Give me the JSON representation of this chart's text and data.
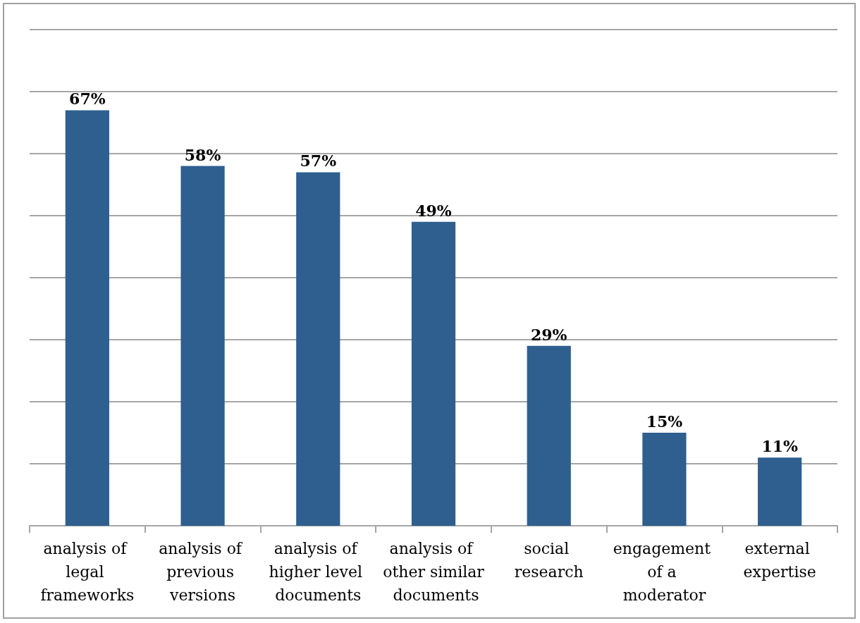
{
  "chart_data": {
    "type": "bar",
    "categories": [
      "analysis of legal frameworks",
      "analysis of previous versions",
      "analysis of higher level documents",
      "analysis of other similar documents",
      "social research",
      "engagement of a moderator",
      "external expertise"
    ],
    "values": [
      67,
      58,
      57,
      49,
      29,
      15,
      11
    ],
    "value_labels": [
      "67%",
      "58%",
      "57%",
      "49%",
      "29%",
      "15%",
      "11%"
    ],
    "color": "#2e5f8f",
    "ylim": [
      0,
      80
    ],
    "yticks": [
      {
        "value": 0,
        "label": null
      },
      {
        "value": 10,
        "label": null
      },
      {
        "value": 20,
        "label": null
      },
      {
        "value": 30,
        "label": null
      },
      {
        "value": 40,
        "label": null
      },
      {
        "value": 50,
        "label": null
      },
      {
        "value": 60,
        "label": null
      },
      {
        "value": 70,
        "label": null
      },
      {
        "value": 80,
        "label": null
      }
    ],
    "grid": "y",
    "tick_labels": "x"
  }
}
